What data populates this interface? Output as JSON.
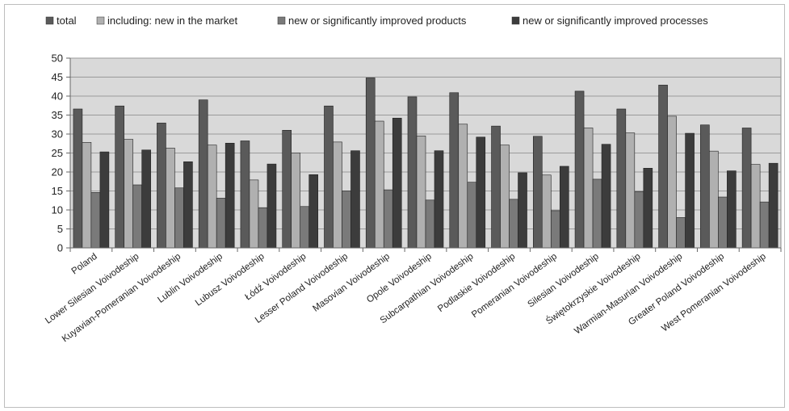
{
  "chart_data": {
    "type": "bar",
    "title": "",
    "xlabel": "",
    "ylabel": "",
    "ylim": [
      0,
      50
    ],
    "yticks": [
      0,
      5,
      10,
      15,
      20,
      25,
      30,
      35,
      40,
      45,
      50
    ],
    "grid": true,
    "legend_position": "top",
    "categories": [
      "Poland",
      "Lower Silesian Voivodeship",
      "Kuyavian-Pomeranian Voivodeship",
      "Lublin Voivodeship",
      "Lubusz Voivodeship",
      "Łódź Voivodeship",
      "Lesser Poland Voivodeship",
      "Masovian Voivodeship",
      "Opole Voivodeship",
      "Subcarpathian Voivodeship",
      "Podlaskie Voivodeship",
      "Pomeranian Voivodeship",
      "Silesian Voivodeship",
      "Świętokrzyskie Voivodeship",
      "Warmian-Masurian Voivodeship",
      "Greater Poland Voivodeship",
      "West Pomeranian Voivodeship"
    ],
    "series": [
      {
        "name": "total",
        "color": "#5a5a5a",
        "values": [
          36.6,
          37.4,
          32.9,
          39.0,
          28.2,
          31.0,
          37.4,
          44.8,
          39.8,
          40.9,
          32.1,
          29.4,
          41.3,
          36.6,
          42.9,
          32.4,
          31.6
        ]
      },
      {
        "name": "including: new in the market",
        "color": "#b0b0b0",
        "values": [
          27.8,
          28.6,
          26.3,
          27.1,
          17.9,
          25.0,
          27.9,
          33.4,
          29.5,
          32.6,
          27.1,
          19.2,
          31.6,
          30.3,
          34.7,
          25.5,
          22.0
        ]
      },
      {
        "name": "new or significantly improved products",
        "color": "#7a7a7a",
        "values": [
          14.6,
          16.6,
          15.8,
          13.1,
          10.6,
          10.9,
          15.0,
          15.3,
          12.6,
          17.3,
          12.8,
          9.8,
          18.1,
          14.8,
          8.0,
          13.4,
          12.1
        ]
      },
      {
        "name": "new or significantly improved processes",
        "color": "#3c3c3c",
        "values": [
          25.3,
          25.8,
          22.7,
          27.6,
          22.1,
          19.3,
          25.6,
          34.2,
          25.6,
          29.2,
          19.8,
          21.5,
          27.3,
          21.0,
          30.2,
          20.3,
          22.3
        ]
      }
    ]
  }
}
